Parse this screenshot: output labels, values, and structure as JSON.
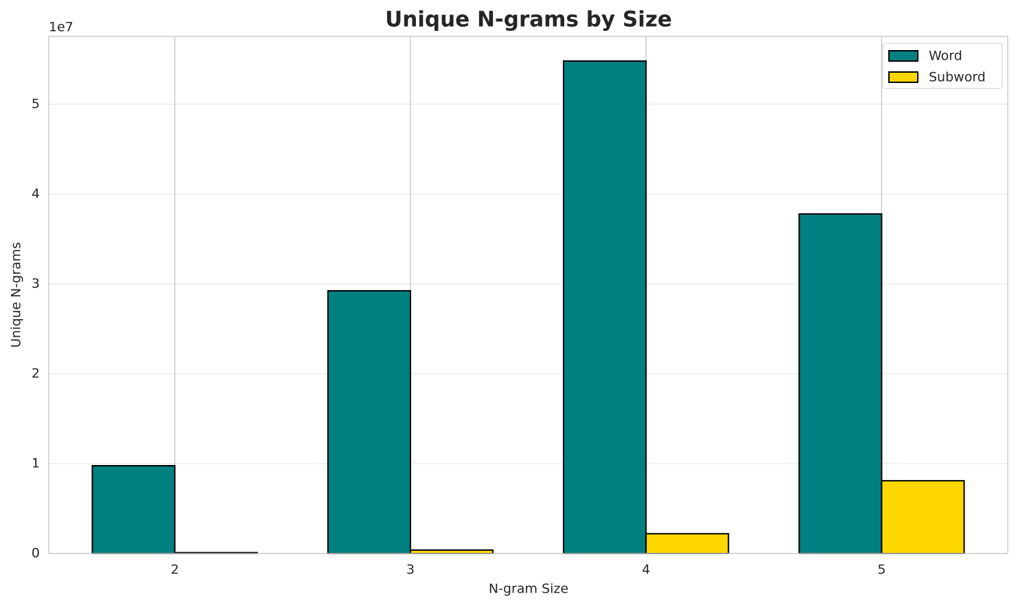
{
  "chart_data": {
    "type": "bar",
    "title": "Unique N-grams by Size",
    "x_label": "N-gram Size",
    "y_label": "Unique N-grams",
    "y_offset_label": "1e7",
    "categories": [
      "2",
      "3",
      "4",
      "5"
    ],
    "series": [
      {
        "name": "Word",
        "color": "#008080",
        "values": [
          9770000,
          29240000,
          54810000,
          37790000
        ]
      },
      {
        "name": "Subword",
        "color": "#ffd700",
        "values": [
          100000,
          380000,
          2200000,
          8100000
        ]
      }
    ],
    "ylim": [
      0,
      57560000
    ],
    "yticks": [
      0,
      {
        "value": 10000000,
        "label": "1"
      },
      {
        "value": 20000000,
        "label": "2"
      },
      {
        "value": 30000000,
        "label": "3"
      },
      {
        "value": 40000000,
        "label": "4"
      },
      {
        "value": 50000000,
        "label": "5"
      }
    ],
    "grid": true,
    "legend": "upper right"
  }
}
